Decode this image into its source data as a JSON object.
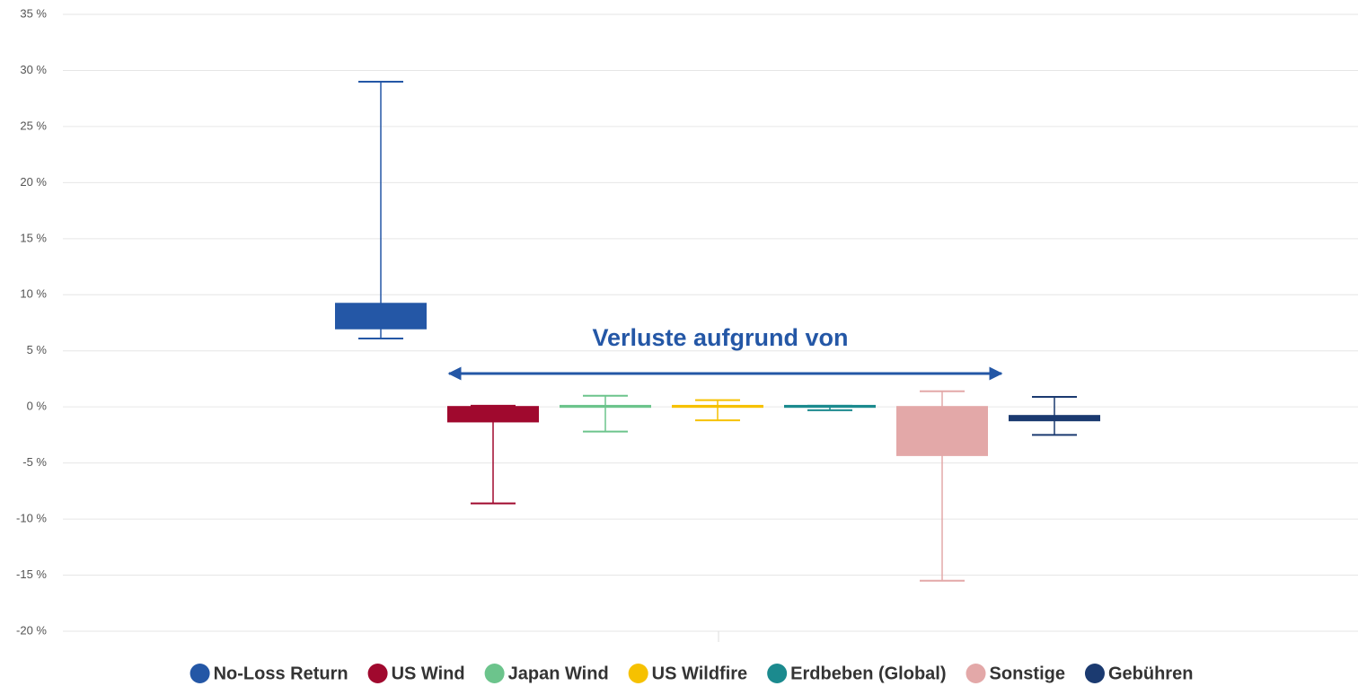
{
  "chart_data": {
    "type": "box",
    "annotation": "Verluste aufgrund von",
    "ylim": [
      -20,
      35
    ],
    "yticks": [
      {
        "value": -20,
        "label": "-20 %"
      },
      {
        "value": -15,
        "label": "-15 %"
      },
      {
        "value": -10,
        "label": "-10 %"
      },
      {
        "value": -5,
        "label": "-5 %"
      },
      {
        "value": 0,
        "label": "0 %"
      },
      {
        "value": 5,
        "label": "5 %"
      },
      {
        "value": 10,
        "label": "10 %"
      },
      {
        "value": 15,
        "label": "15 %"
      },
      {
        "value": 20,
        "label": "20 %"
      },
      {
        "value": 25,
        "label": "25 %"
      },
      {
        "value": 30,
        "label": "30 %"
      },
      {
        "value": 35,
        "label": "35 %"
      }
    ],
    "grid": true,
    "legend": "bottom",
    "series": [
      {
        "name": "No-Loss Return",
        "color": "#2457a6",
        "min": 6.1,
        "q1": 7.0,
        "q3": 9.2,
        "max": 29
      },
      {
        "name": "US Wind",
        "color": "#a0092e",
        "min": -8.6,
        "q1": -1.3,
        "q3": 0,
        "max": 0.1
      },
      {
        "name": "Japan Wind",
        "color": "#6cc48c",
        "min": -2.2,
        "q1": 0,
        "q3": 0.1,
        "max": 1.0
      },
      {
        "name": "US Wildfire",
        "color": "#f6c100",
        "min": -1.2,
        "q1": 0,
        "q3": 0.1,
        "max": 0.6
      },
      {
        "name": "Erdbeben (Global)",
        "color": "#1b8a8e",
        "min": -0.3,
        "q1": 0,
        "q3": 0.1,
        "max": 0.1
      },
      {
        "name": "Sonstige",
        "color": "#e3a8a8",
        "min": -15.5,
        "q1": -4.3,
        "q3": 0,
        "max": 1.4
      },
      {
        "name": "Gebühren",
        "color": "#1b3a70",
        "min": -2.5,
        "q1": -1.2,
        "q3": -0.8,
        "max": 0.9
      }
    ]
  }
}
